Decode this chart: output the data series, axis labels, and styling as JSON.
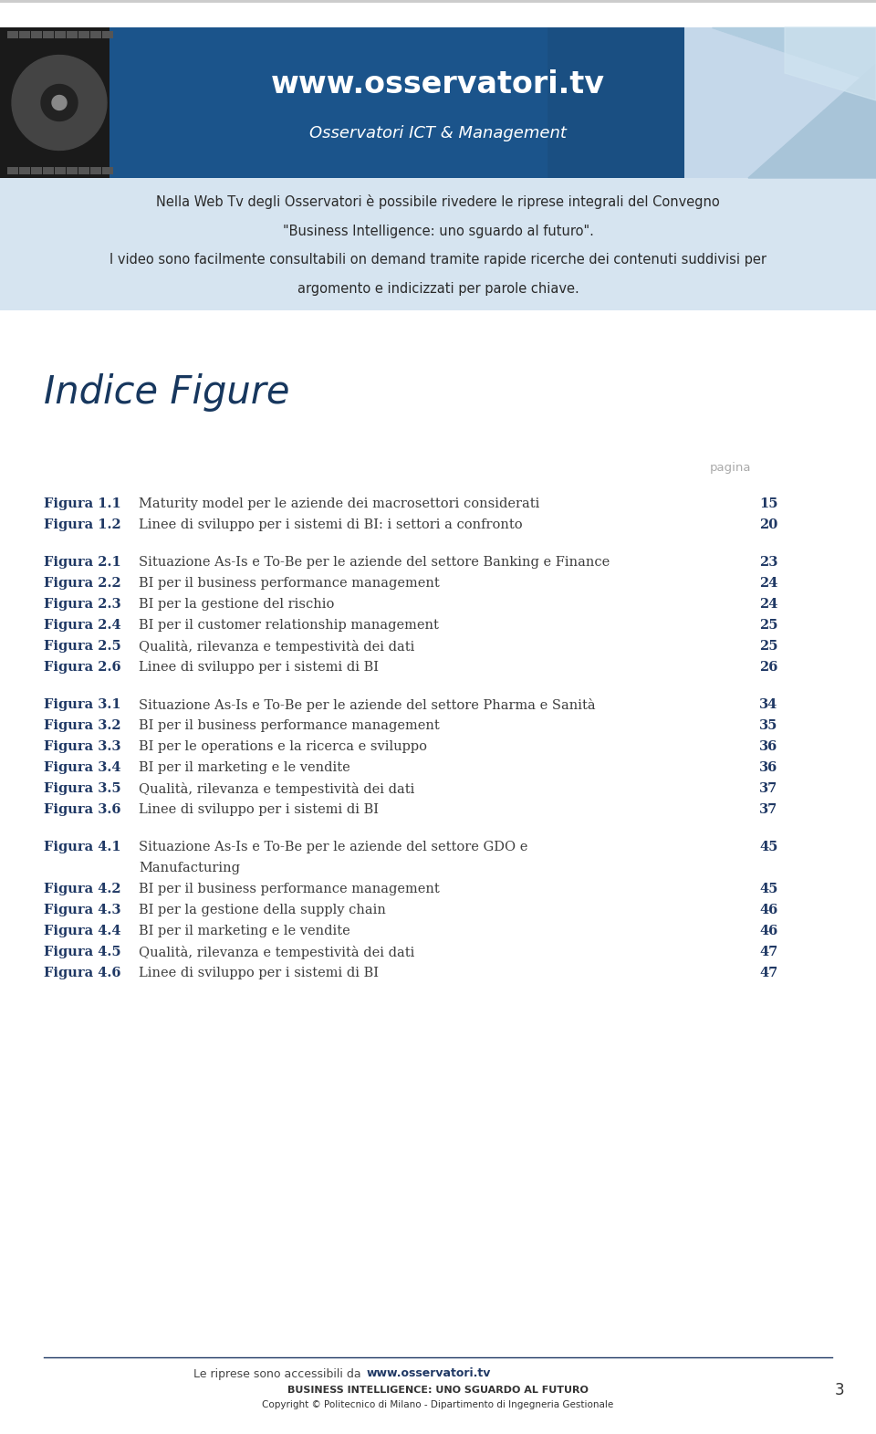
{
  "page_bg": "#ffffff",
  "header_banner_bg": "#1a4f82",
  "header_url": "www.osservatori.tv",
  "header_subtitle": "Osservatori ICT & Management",
  "header_text1": "Nella Web Tv degli Osservatori è possibile rivedere le riprese integrali del Convegno",
  "header_text2": "\"Business Intelligence: uno sguardo al futuro\".",
  "header_text3": "I video sono facilmente consultabili on demand tramite rapide ricerche dei contenuti suddivisi per",
  "header_text4": "argomento e indicizzati per parole chiave.",
  "section_title": "Indice Figure",
  "pagina_label": "pagina",
  "entries": [
    {
      "label": "Figura 1.1",
      "desc": "Maturity model per le aziende dei macrosettori considerati",
      "page": "15",
      "group": 1,
      "multiline": false
    },
    {
      "label": "Figura 1.2",
      "desc": "Linee di sviluppo per i sistemi di BI: i settori a confronto",
      "page": "20",
      "group": 1,
      "multiline": false
    },
    {
      "label": "Figura 2.1",
      "desc": "Situazione As-Is e To-Be per le aziende del settore Banking e Finance",
      "page": "23",
      "group": 2,
      "multiline": false
    },
    {
      "label": "Figura 2.2",
      "desc": "BI per il business performance management",
      "page": "24",
      "group": 2,
      "multiline": false
    },
    {
      "label": "Figura 2.3",
      "desc": "BI per la gestione del rischio",
      "page": "24",
      "group": 2,
      "multiline": false
    },
    {
      "label": "Figura 2.4",
      "desc": "BI per il customer relationship management",
      "page": "25",
      "group": 2,
      "multiline": false
    },
    {
      "label": "Figura 2.5",
      "desc": "Qualità, rilevanza e tempestività dei dati",
      "page": "25",
      "group": 2,
      "multiline": false
    },
    {
      "label": "Figura 2.6",
      "desc": "Linee di sviluppo per i sistemi di BI",
      "page": "26",
      "group": 2,
      "multiline": false
    },
    {
      "label": "Figura 3.1",
      "desc": "Situazione As-Is e To-Be per le aziende del settore Pharma e Sanità",
      "page": "34",
      "group": 3,
      "multiline": false
    },
    {
      "label": "Figura 3.2",
      "desc": "BI per il business performance management",
      "page": "35",
      "group": 3,
      "multiline": false
    },
    {
      "label": "Figura 3.3",
      "desc": "BI per le operations e la ricerca e sviluppo",
      "page": "36",
      "group": 3,
      "multiline": false
    },
    {
      "label": "Figura 3.4",
      "desc": "BI per il marketing e le vendite",
      "page": "36",
      "group": 3,
      "multiline": false
    },
    {
      "label": "Figura 3.5",
      "desc": "Qualità, rilevanza e tempestività dei dati",
      "page": "37",
      "group": 3,
      "multiline": false
    },
    {
      "label": "Figura 3.6",
      "desc": "Linee di sviluppo per i sistemi di BI",
      "page": "37",
      "group": 3,
      "multiline": false
    },
    {
      "label": "Figura 4.1",
      "desc": "Situazione As-Is e To-Be per le aziende del settore GDO e",
      "desc2": "Manufacturing",
      "page": "45",
      "group": 4,
      "multiline": true
    },
    {
      "label": "Figura 4.2",
      "desc": "BI per il business performance management",
      "page": "45",
      "group": 4,
      "multiline": false
    },
    {
      "label": "Figura 4.3",
      "desc": "BI per la gestione della supply chain",
      "page": "46",
      "group": 4,
      "multiline": false
    },
    {
      "label": "Figura 4.4",
      "desc": "BI per il marketing e le vendite",
      "page": "46",
      "group": 4,
      "multiline": false
    },
    {
      "label": "Figura 4.5",
      "desc": "Qualità, rilevanza e tempestività dei dati",
      "page": "47",
      "group": 4,
      "multiline": false
    },
    {
      "label": "Figura 4.6",
      "desc": "Linee di sviluppo per i sistemi di BI",
      "page": "47",
      "group": 4,
      "multiline": false
    }
  ],
  "footer_text1": "Le riprese sono accessibili da ",
  "footer_url": "www.osservatori.tv",
  "footer_text2": "BUSINESS INTELLIGENCE: UNO SGUARDO AL FUTURO",
  "footer_text3": "Copyright © Politecnico di Milano - Dipartimento di Ingegneria Gestionale",
  "footer_page": "3",
  "label_color": "#1f3864",
  "desc_color": "#3d3d3d",
  "page_num_color": "#1f3864",
  "section_title_color": "#17375e",
  "pagina_color": "#aaaaaa",
  "footer_bg": "#ffffff",
  "footer_line_color": "#1f3864",
  "top_border_color": "#cccccc",
  "info_box_bg": "#d6e4f0"
}
